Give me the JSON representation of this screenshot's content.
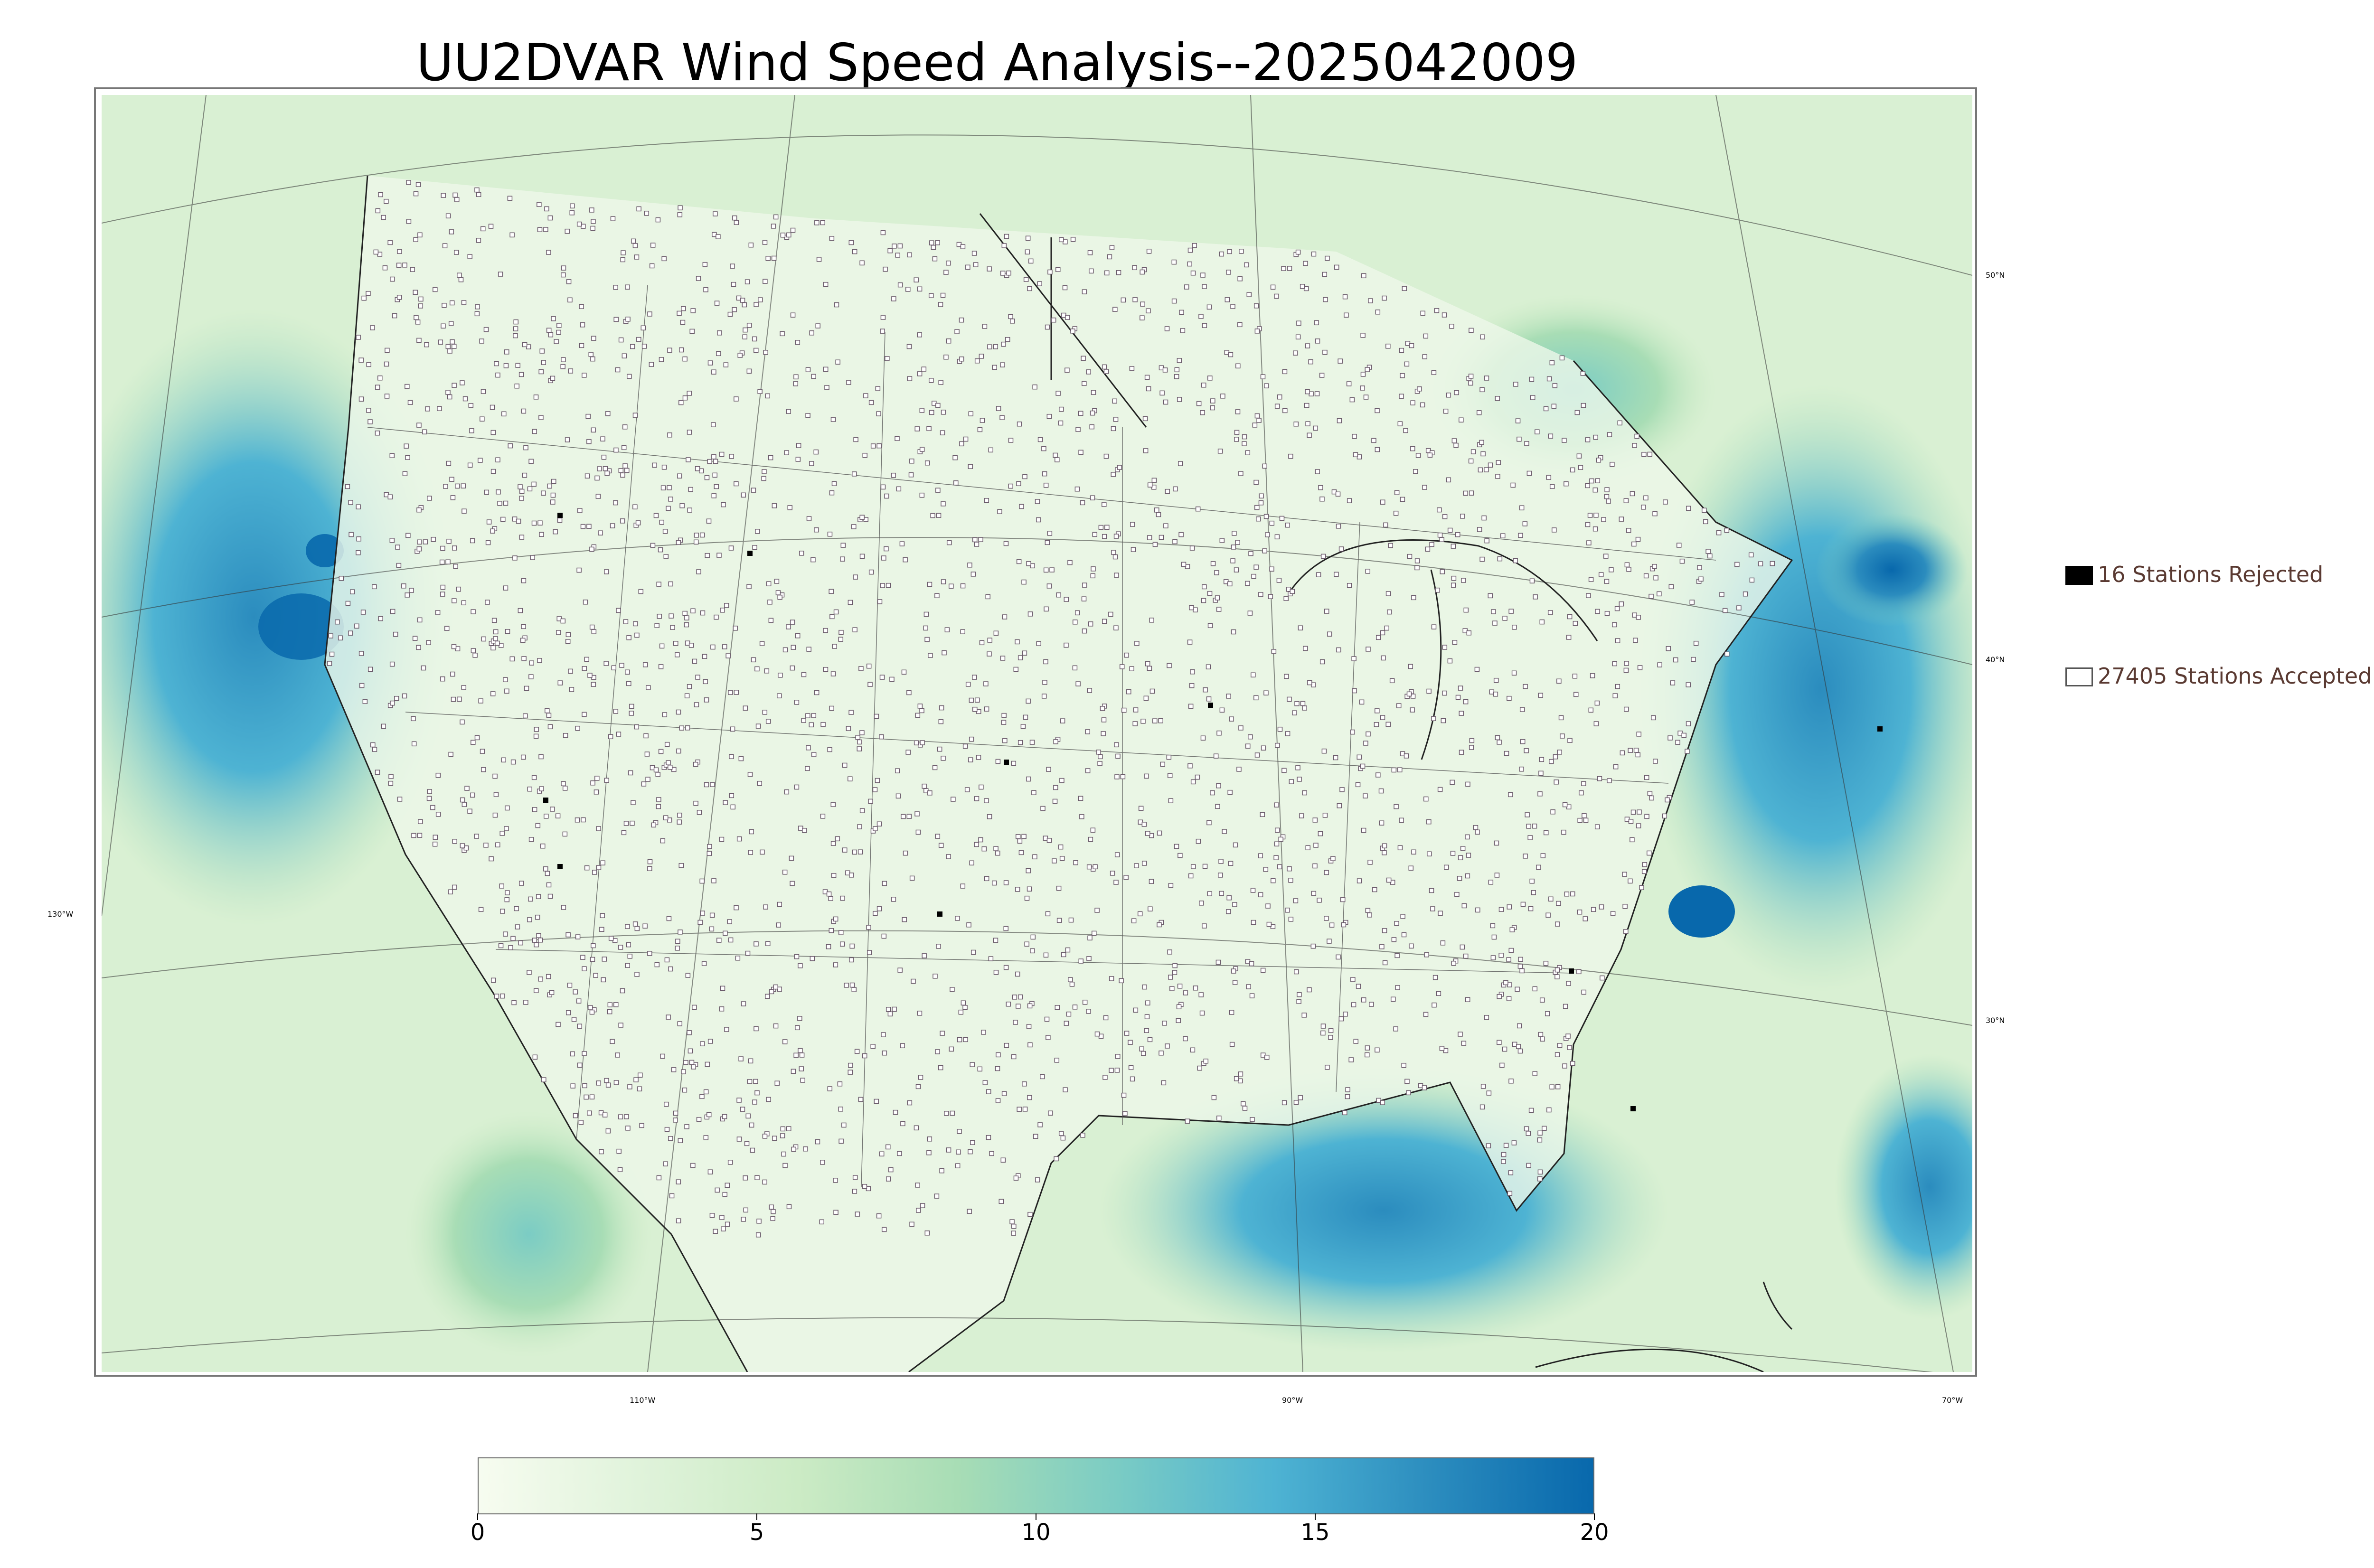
{
  "title": "UU2DVAR Wind Speed Analysis--2025042009",
  "map": {
    "lat_labels": [
      "50°N",
      "40°N",
      "30°N"
    ],
    "lon_labels": [
      "130°W",
      "110°W",
      "90°W",
      "70°W"
    ]
  },
  "legend": {
    "rejected": {
      "label": "16 Stations Rejected",
      "count": 16,
      "color": "#000000"
    },
    "accepted": {
      "label": "27405 Stations Accepted",
      "count": 27405,
      "color": "#ffffff"
    }
  },
  "colorbar": {
    "min": 0,
    "max": 20,
    "ticks": [
      "0",
      "5",
      "10",
      "15",
      "20"
    ],
    "colors": [
      "#f7fcf0",
      "#e0f3db",
      "#ccebc5",
      "#a8ddb5",
      "#7bccc4",
      "#4eb3d3",
      "#2b8cbe",
      "#0868ac"
    ]
  }
}
